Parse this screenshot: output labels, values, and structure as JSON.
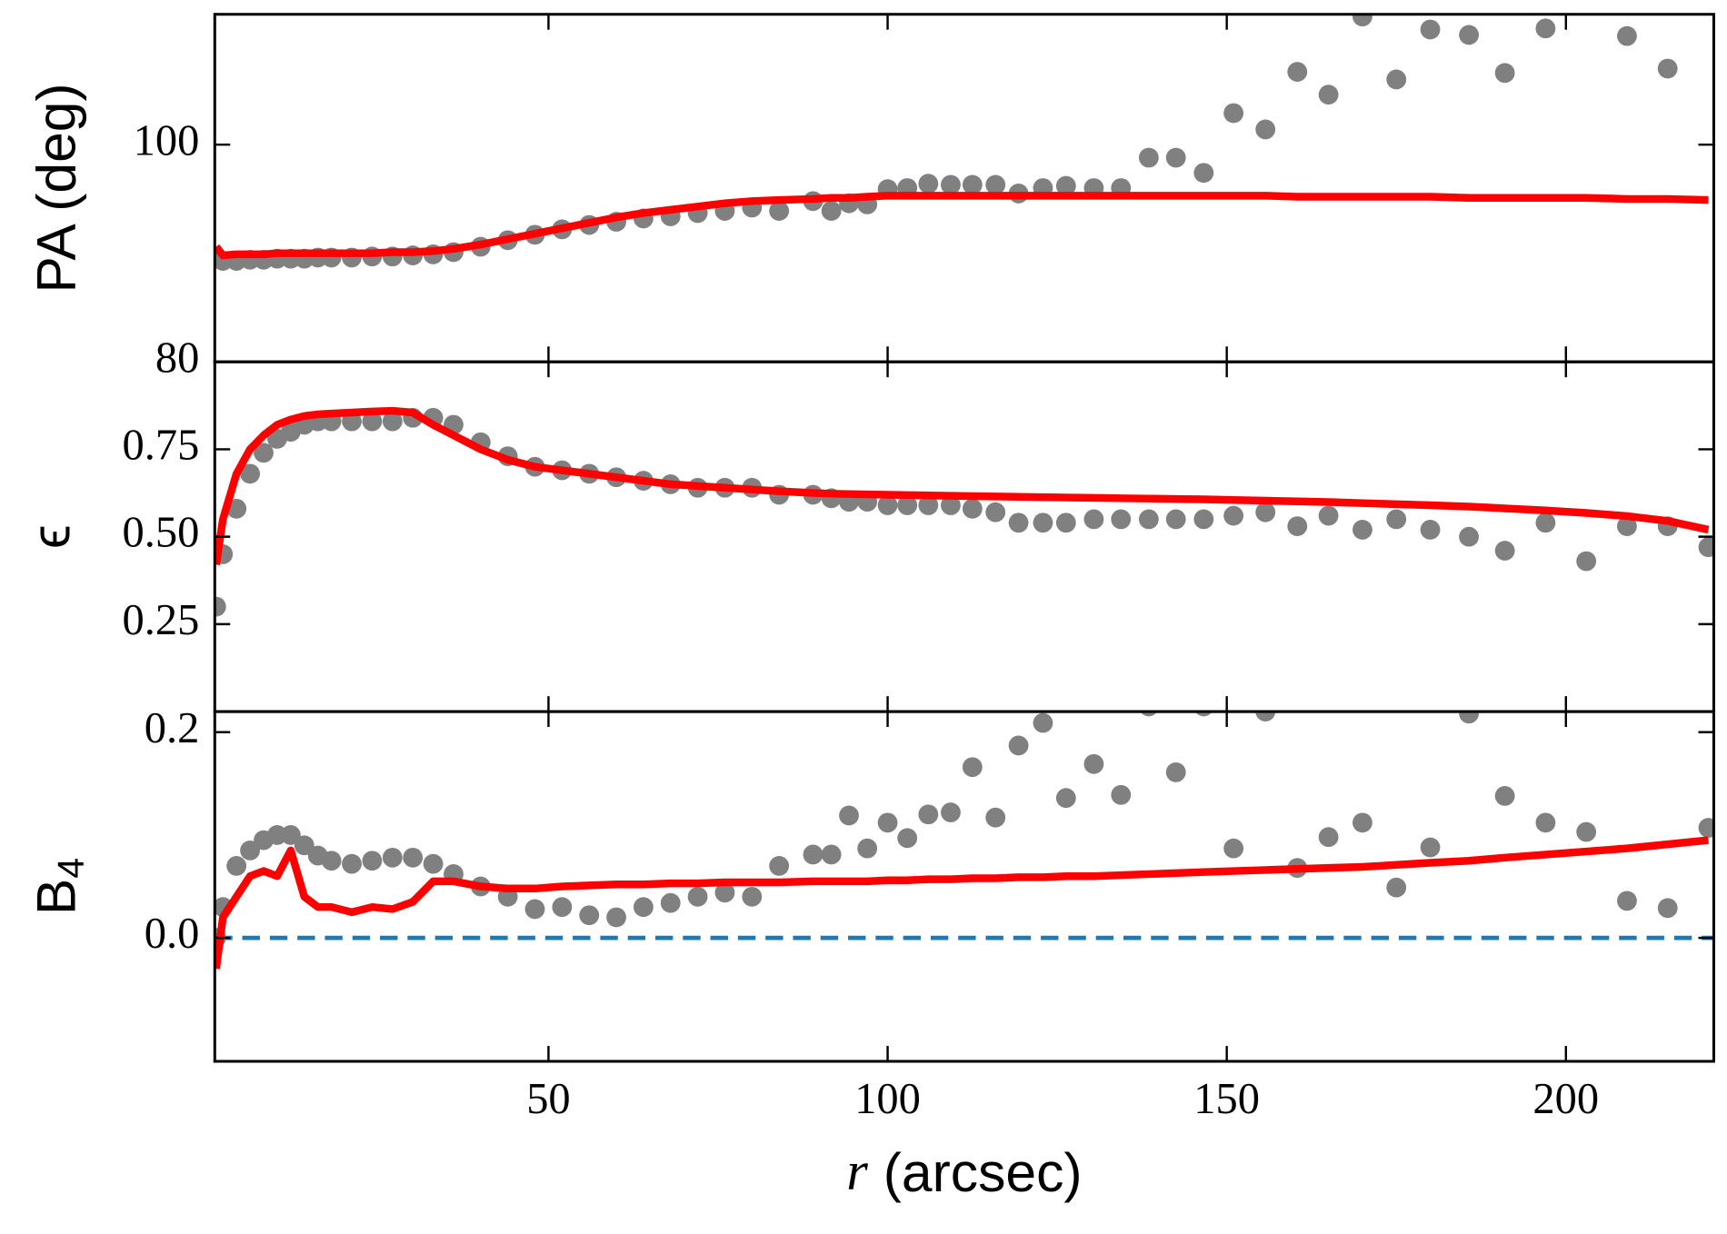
{
  "chart_data": [
    {
      "type": "scatter",
      "ylabel": "PA (deg)",
      "xlim": [
        0.8,
        221.8
      ],
      "xticks": [
        50,
        100,
        150,
        200
      ],
      "ylim": [
        80,
        112
      ],
      "yticks": [
        80,
        100
      ],
      "x": [
        1,
        2,
        4,
        6,
        8,
        10,
        12,
        14,
        16,
        18,
        21,
        24,
        27,
        30,
        33,
        36,
        40,
        44,
        48,
        52,
        56,
        60,
        64,
        68,
        72,
        76,
        80,
        84,
        89,
        91.7,
        94.3,
        97,
        100,
        102.9,
        106,
        109.3,
        112.5,
        115.9,
        119.3,
        122.9,
        126.3,
        130.4,
        134.4,
        138.5,
        142.5,
        146.6,
        151,
        155.7,
        160.4,
        165,
        170,
        175,
        180,
        185.7,
        191,
        197,
        203,
        209,
        215,
        221
      ],
      "series": [
        {
          "mode": "markers",
          "color": "#808080",
          "values": [
            89.5,
            89.3,
            89.3,
            89.4,
            89.4,
            89.5,
            89.5,
            89.5,
            89.6,
            89.6,
            89.6,
            89.7,
            89.7,
            89.8,
            89.9,
            90.1,
            90.6,
            91.2,
            91.7,
            92.2,
            92.6,
            92.9,
            93.2,
            93.4,
            93.7,
            93.9,
            94.2,
            93.9,
            94.8,
            93.9,
            94.6,
            94.5,
            95.9,
            96.0,
            96.4,
            96.3,
            96.3,
            96.3,
            95.5,
            96.0,
            96.2,
            96.0,
            96.0,
            98.8,
            98.8,
            97.4,
            102.9,
            101.4,
            106.7,
            104.6,
            111.8,
            106.0,
            110.6,
            110.1,
            106.6,
            110.7,
            null,
            110.0,
            107.0,
            null
          ]
        },
        {
          "mode": "line",
          "color": "#ff0000",
          "values": [
            90.6,
            89.8,
            89.9,
            89.9,
            89.9,
            90.0,
            90.0,
            90.0,
            90.0,
            90.0,
            90.0,
            90.0,
            90.1,
            90.1,
            90.2,
            90.4,
            90.8,
            91.3,
            91.8,
            92.3,
            92.8,
            93.3,
            93.7,
            94.0,
            94.3,
            94.6,
            94.8,
            94.9,
            95.0,
            95.1,
            95.1,
            95.2,
            95.3,
            95.3,
            95.3,
            95.3,
            95.3,
            95.3,
            95.3,
            95.3,
            95.3,
            95.3,
            95.3,
            95.3,
            95.3,
            95.3,
            95.3,
            95.3,
            95.2,
            95.2,
            95.2,
            95.2,
            95.2,
            95.1,
            95.1,
            95.1,
            95.1,
            95.0,
            95.0,
            94.9
          ]
        }
      ]
    },
    {
      "type": "scatter",
      "ylabel": "ϵ",
      "xlim": [
        0.8,
        221.8
      ],
      "xticks": [
        50,
        100,
        150,
        200
      ],
      "ylim": [
        0,
        1
      ],
      "yticks": [
        0.25,
        {
          "value": 0.5,
          "label": "0.50"
        },
        0.75
      ],
      "x": [
        1,
        2,
        4,
        6,
        8,
        10,
        12,
        14,
        16,
        18,
        21,
        24,
        27,
        30,
        33,
        36,
        40,
        44,
        48,
        52,
        56,
        60,
        64,
        68,
        72,
        76,
        80,
        84,
        89,
        91.7,
        94.3,
        97,
        100,
        102.9,
        106,
        109.3,
        112.5,
        115.9,
        119.3,
        122.9,
        126.3,
        130.4,
        134.4,
        138.5,
        142.5,
        146.6,
        151,
        155.7,
        160.4,
        165,
        170,
        175,
        180,
        185.7,
        191,
        197,
        203,
        209,
        215,
        221
      ],
      "series": [
        {
          "mode": "markers",
          "color": "#808080",
          "values": [
            0.3,
            0.45,
            0.58,
            0.68,
            0.74,
            0.78,
            0.8,
            0.82,
            0.83,
            0.83,
            0.83,
            0.83,
            0.83,
            0.84,
            0.84,
            0.82,
            0.77,
            0.73,
            0.7,
            0.69,
            0.68,
            0.67,
            0.66,
            0.65,
            0.64,
            0.64,
            0.64,
            0.62,
            0.62,
            0.61,
            0.6,
            0.6,
            0.59,
            0.59,
            0.59,
            0.59,
            0.58,
            0.57,
            0.54,
            0.54,
            0.54,
            0.55,
            0.55,
            0.55,
            0.55,
            0.55,
            0.56,
            0.57,
            0.53,
            0.56,
            0.52,
            0.55,
            0.52,
            0.5,
            0.46,
            0.54,
            0.43,
            0.53,
            0.53,
            0.47
          ]
        },
        {
          "mode": "line",
          "color": "#ff0000",
          "values": [
            0.42,
            0.55,
            0.68,
            0.75,
            0.79,
            0.82,
            0.835,
            0.845,
            0.85,
            0.852,
            0.855,
            0.858,
            0.86,
            0.855,
            0.82,
            0.79,
            0.75,
            0.72,
            0.7,
            0.69,
            0.68,
            0.67,
            0.66,
            0.65,
            0.645,
            0.64,
            0.635,
            0.63,
            0.625,
            0.623,
            0.622,
            0.621,
            0.62,
            0.619,
            0.618,
            0.617,
            0.616,
            0.615,
            0.614,
            0.613,
            0.612,
            0.611,
            0.61,
            0.609,
            0.608,
            0.607,
            0.605,
            0.603,
            0.601,
            0.599,
            0.596,
            0.593,
            0.59,
            0.586,
            0.581,
            0.575,
            0.568,
            0.559,
            0.545,
            0.52
          ]
        }
      ]
    },
    {
      "type": "scatter",
      "ylabel": "B",
      "ylabel_sub": "4",
      "xlabel_var": "r",
      "xlabel": "(arcsec)",
      "xlim": [
        0.8,
        221.8
      ],
      "xticks": [
        50,
        100,
        150,
        200
      ],
      "ylim": [
        -0.12,
        0.22
      ],
      "yticks": [
        {
          "value": 0,
          "label": "0.0"
        },
        0.2
      ],
      "hline": {
        "value": 0,
        "color": "#1f77b4"
      },
      "x": [
        1,
        2,
        4,
        6,
        8,
        10,
        12,
        14,
        16,
        18,
        21,
        24,
        27,
        30,
        33,
        36,
        40,
        44,
        48,
        52,
        56,
        60,
        64,
        68,
        72,
        76,
        80,
        84,
        89,
        91.7,
        94.3,
        97,
        100,
        102.9,
        106,
        109.3,
        112.5,
        115.9,
        119.3,
        122.9,
        126.3,
        130.4,
        134.4,
        138.5,
        142.5,
        146.6,
        151,
        155.7,
        160.4,
        165,
        170,
        175,
        180,
        185.7,
        191,
        197,
        203,
        209,
        215,
        221
      ],
      "series": [
        {
          "mode": "markers",
          "color": "#808080",
          "values": [
            0.0,
            0.03,
            0.07,
            0.085,
            0.095,
            0.1,
            0.1,
            0.09,
            0.08,
            0.075,
            0.072,
            0.075,
            0.078,
            0.078,
            0.072,
            0.062,
            0.05,
            0.04,
            0.028,
            0.03,
            0.022,
            0.02,
            0.03,
            0.034,
            0.04,
            0.044,
            0.04,
            0.07,
            0.081,
            0.081,
            0.119,
            0.087,
            0.112,
            0.097,
            0.12,
            0.122,
            0.166,
            0.117,
            0.187,
            0.209,
            0.136,
            0.169,
            0.139,
            0.225,
            0.161,
            0.225,
            0.087,
            0.22,
            0.068,
            0.098,
            0.112,
            0.049,
            0.088,
            0.218,
            0.138,
            0.112,
            0.103,
            0.036,
            0.029,
            0.107
          ]
        },
        {
          "mode": "line",
          "color": "#ff0000",
          "values": [
            -0.03,
            0.02,
            0.04,
            0.06,
            0.065,
            0.06,
            0.085,
            0.04,
            0.03,
            0.03,
            0.025,
            0.03,
            0.028,
            0.035,
            0.055,
            0.055,
            0.05,
            0.048,
            0.048,
            0.05,
            0.051,
            0.052,
            0.052,
            0.053,
            0.053,
            0.054,
            0.054,
            0.054,
            0.055,
            0.055,
            0.055,
            0.055,
            0.056,
            0.056,
            0.057,
            0.057,
            0.058,
            0.058,
            0.059,
            0.059,
            0.06,
            0.06,
            0.061,
            0.062,
            0.063,
            0.064,
            0.065,
            0.066,
            0.067,
            0.068,
            0.069,
            0.071,
            0.073,
            0.075,
            0.078,
            0.081,
            0.084,
            0.087,
            0.091,
            0.095
          ]
        }
      ]
    }
  ]
}
